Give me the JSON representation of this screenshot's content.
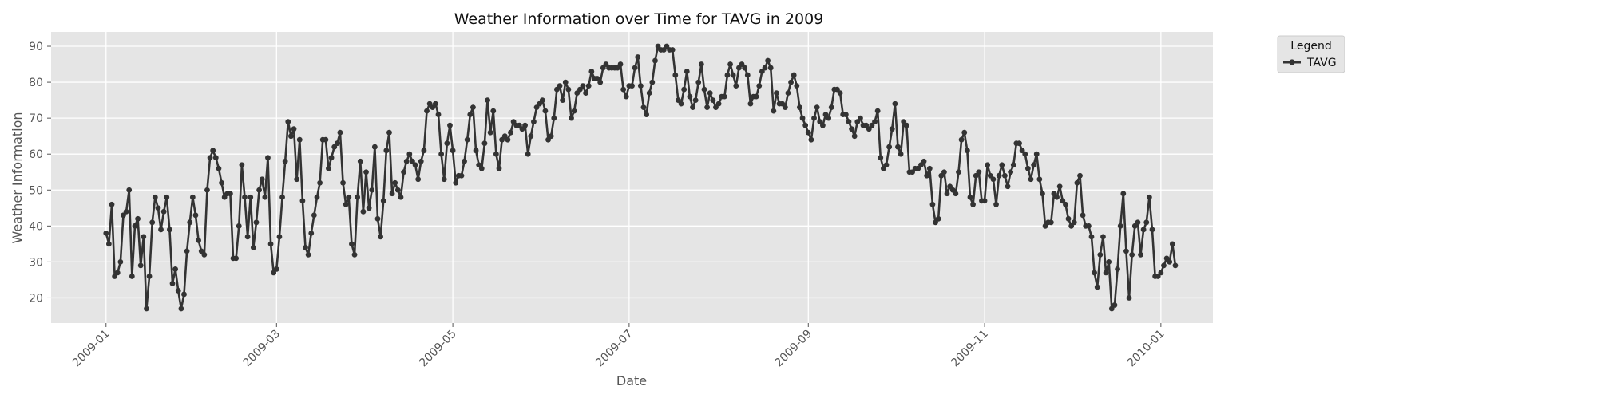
{
  "chart_data": {
    "type": "line",
    "title": "Weather Information over Time for TAVG in 2009",
    "xlabel": "Date",
    "ylabel": "Weather Information",
    "xlim": [
      "2008-12-13",
      "2010-01-19"
    ],
    "ylim": [
      13,
      94
    ],
    "x_ticks": [
      "2009-01",
      "2009-03",
      "2009-05",
      "2009-07",
      "2009-09",
      "2009-11",
      "2010-01"
    ],
    "y_ticks": [
      20,
      30,
      40,
      50,
      60,
      70,
      80,
      90
    ],
    "grid": true,
    "legend": {
      "title": "Legend",
      "position": "outside-top-right",
      "entries": [
        "TAVG"
      ]
    },
    "colors": {
      "plot_background": "#e5e5e5",
      "grid": "#ffffff",
      "series": "#333333"
    },
    "series": [
      {
        "name": "TAVG",
        "start_date": "2009-01-01",
        "values": [
          38,
          35,
          46,
          26,
          27,
          30,
          43,
          44,
          50,
          26,
          40,
          42,
          29,
          37,
          17,
          26,
          41,
          48,
          45,
          39,
          44,
          48,
          39,
          24,
          28,
          22,
          17,
          21,
          33,
          41,
          48,
          43,
          36,
          33,
          32,
          50,
          59,
          61,
          59,
          56,
          52,
          48,
          49,
          49,
          31,
          31,
          40,
          57,
          48,
          37,
          48,
          34,
          41,
          50,
          53,
          48,
          59,
          35,
          27,
          28,
          37,
          48,
          58,
          69,
          65,
          67,
          53,
          64,
          47,
          34,
          32,
          38,
          43,
          48,
          52,
          64,
          64,
          56,
          59,
          62,
          63,
          66,
          52,
          46,
          48,
          35,
          32,
          48,
          58,
          44,
          55,
          45,
          50,
          62,
          42,
          37,
          47,
          61,
          66,
          49,
          52,
          50,
          48,
          55,
          58,
          60,
          58,
          57,
          53,
          58,
          61,
          72,
          74,
          73,
          74,
          71,
          60,
          53,
          63,
          68,
          61,
          52,
          54,
          54,
          58,
          64,
          71,
          73,
          61,
          57,
          56,
          63,
          75,
          66,
          72,
          60,
          56,
          64,
          65,
          64,
          66,
          69,
          68,
          68,
          67,
          68,
          60,
          65,
          69,
          73,
          74,
          75,
          72,
          64,
          65,
          70,
          78,
          79,
          75,
          80,
          78,
          70,
          72,
          77,
          78,
          79,
          77,
          79,
          83,
          81,
          81,
          80,
          84,
          85,
          84,
          84,
          84,
          84,
          85,
          78,
          76,
          79,
          79,
          84,
          87,
          79,
          73,
          71,
          77,
          80,
          86,
          90,
          89,
          89,
          90,
          89,
          89,
          82,
          75,
          74,
          78,
          83,
          76,
          73,
          75,
          80,
          85,
          78,
          73,
          77,
          75,
          73,
          74,
          76,
          76,
          82,
          85,
          82,
          79,
          84,
          85,
          84,
          82,
          74,
          76,
          76,
          79,
          83,
          84,
          86,
          84,
          72,
          77,
          74,
          74,
          73,
          77,
          80,
          82,
          79,
          73,
          70,
          68,
          66,
          64,
          70,
          73,
          69,
          68,
          71,
          70,
          73,
          78,
          78,
          77,
          71,
          71,
          69,
          67,
          65,
          69,
          70,
          68,
          68,
          67,
          68,
          69,
          72,
          59,
          56,
          57,
          62,
          67,
          74,
          62,
          60,
          69,
          68,
          55,
          55,
          56,
          56,
          57,
          58,
          54,
          56,
          46,
          41,
          42,
          54,
          55,
          49,
          51,
          50,
          49,
          55,
          64,
          66,
          61,
          48,
          46,
          54,
          55,
          47,
          47,
          57,
          54,
          53,
          46,
          54,
          57,
          54,
          51,
          55,
          57,
          63,
          63,
          61,
          60,
          56,
          53,
          57,
          60,
          53,
          49,
          40,
          41,
          41,
          49,
          48,
          51,
          47,
          46,
          42,
          40,
          41,
          52,
          54,
          43,
          40,
          40,
          37,
          27,
          23,
          32,
          37,
          27,
          30,
          17,
          18,
          28,
          40,
          49,
          33,
          20,
          32,
          40,
          41,
          32,
          39,
          41,
          48,
          39,
          26,
          26,
          27,
          29,
          31,
          30,
          35,
          29
        ]
      }
    ]
  }
}
